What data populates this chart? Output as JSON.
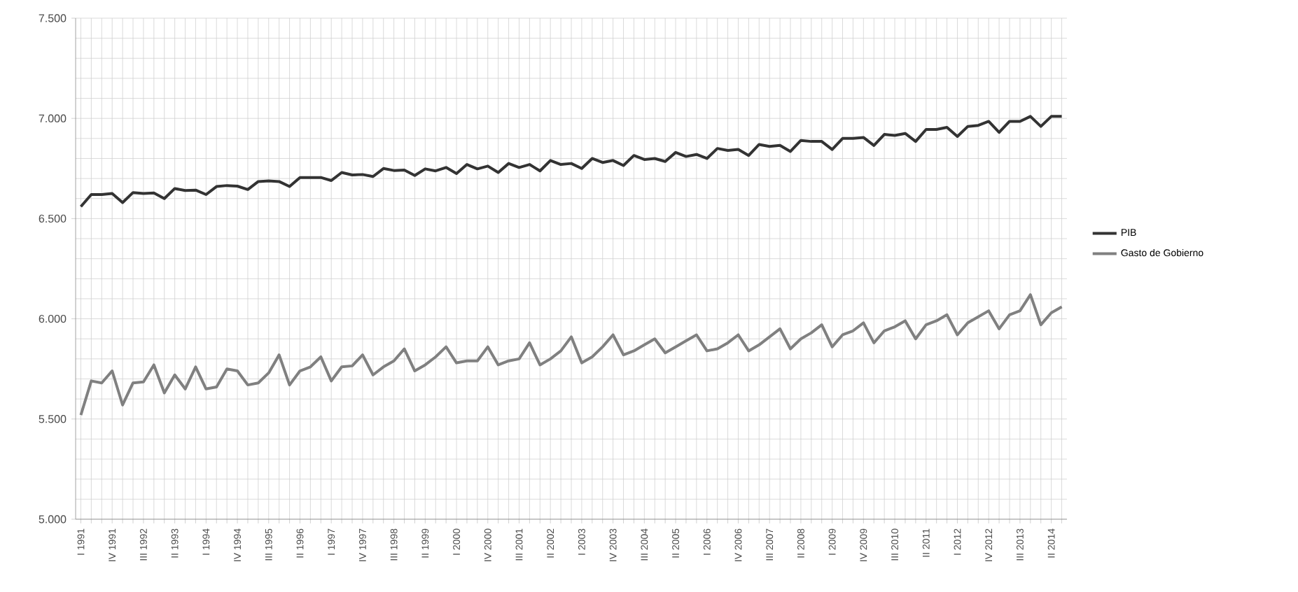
{
  "chart_data": {
    "type": "line",
    "categories": [
      "I 1991",
      null,
      null,
      "IV 1991",
      null,
      null,
      "III 1992",
      null,
      null,
      "II 1993",
      null,
      null,
      "I 1994",
      null,
      null,
      "IV 1994",
      null,
      null,
      "III 1995",
      null,
      null,
      "II 1996",
      null,
      null,
      "I 1997",
      null,
      null,
      "IV 1997",
      null,
      null,
      "III 1998",
      null,
      null,
      "II 1999",
      null,
      null,
      "I 2000",
      null,
      null,
      "IV 2000",
      null,
      null,
      "III 2001",
      null,
      null,
      "II 2002",
      null,
      null,
      "I 2003",
      null,
      null,
      "IV 2003",
      null,
      null,
      "III 2004",
      null,
      null,
      "II 2005",
      null,
      null,
      "I 2006",
      null,
      null,
      "IV 2006",
      null,
      null,
      "III 2007",
      null,
      null,
      "II 2008",
      null,
      null,
      "I 2009",
      null,
      null,
      "IV 2009",
      null,
      null,
      "III 2010",
      null,
      null,
      "II 2011",
      null,
      null,
      "I 2012",
      null,
      null,
      "IV 2012",
      null,
      null,
      "III 2013",
      null,
      null,
      "II 2014",
      null
    ],
    "series": [
      {
        "name": "PIB",
        "color": "#333333",
        "values": [
          6560,
          6620,
          6620,
          6625,
          6580,
          6630,
          6625,
          6628,
          6600,
          6650,
          6640,
          6642,
          6620,
          6660,
          6665,
          6662,
          6645,
          6685,
          6688,
          6685,
          6660,
          6705,
          6705,
          6705,
          6690,
          6730,
          6718,
          6720,
          6710,
          6750,
          6740,
          6742,
          6715,
          6748,
          6738,
          6755,
          6725,
          6770,
          6748,
          6762,
          6730,
          6775,
          6755,
          6770,
          6738,
          6790,
          6770,
          6775,
          6750,
          6800,
          6780,
          6790,
          6765,
          6815,
          6795,
          6800,
          6785,
          6830,
          6810,
          6820,
          6800,
          6850,
          6840,
          6845,
          6815,
          6870,
          6860,
          6865,
          6835,
          6890,
          6885,
          6885,
          6845,
          6900,
          6900,
          6905,
          6865,
          6920,
          6915,
          6925,
          6885,
          6945,
          6945,
          6955,
          6910,
          6960,
          6965,
          6985,
          6930,
          6985,
          6985,
          7010,
          6960,
          7010,
          7010
        ]
      },
      {
        "name": "Gasto de Gobierno",
        "color": "#808080",
        "values": [
          5520,
          5690,
          5680,
          5740,
          5570,
          5680,
          5685,
          5770,
          5630,
          5720,
          5650,
          5760,
          5650,
          5660,
          5750,
          5740,
          5670,
          5680,
          5730,
          5820,
          5670,
          5740,
          5760,
          5810,
          5690,
          5760,
          5765,
          5820,
          5720,
          5760,
          5790,
          5850,
          5740,
          5770,
          5810,
          5860,
          5780,
          5790,
          5790,
          5860,
          5770,
          5790,
          5800,
          5880,
          5770,
          5800,
          5840,
          5910,
          5780,
          5810,
          5860,
          5920,
          5820,
          5840,
          5870,
          5900,
          5830,
          5860,
          5890,
          5920,
          5840,
          5850,
          5880,
          5920,
          5840,
          5870,
          5910,
          5950,
          5850,
          5900,
          5930,
          5970,
          5860,
          5920,
          5940,
          5980,
          5880,
          5940,
          5960,
          5990,
          5900,
          5970,
          5990,
          6020,
          5920,
          5980,
          6010,
          6040,
          5950,
          6020,
          6040,
          6120,
          5970,
          6030,
          6060
        ]
      }
    ],
    "ylim": [
      5000,
      7500
    ],
    "yticks": [
      {
        "value": 5000,
        "label": "5.000"
      },
      {
        "value": 5500,
        "label": "5.500"
      },
      {
        "value": 6000,
        "label": "6.000"
      },
      {
        "value": 6500,
        "label": "6.500"
      },
      {
        "value": 7000,
        "label": "7.000"
      },
      {
        "value": 7500,
        "label": "7.500"
      }
    ],
    "grid": true,
    "legend": "right"
  }
}
